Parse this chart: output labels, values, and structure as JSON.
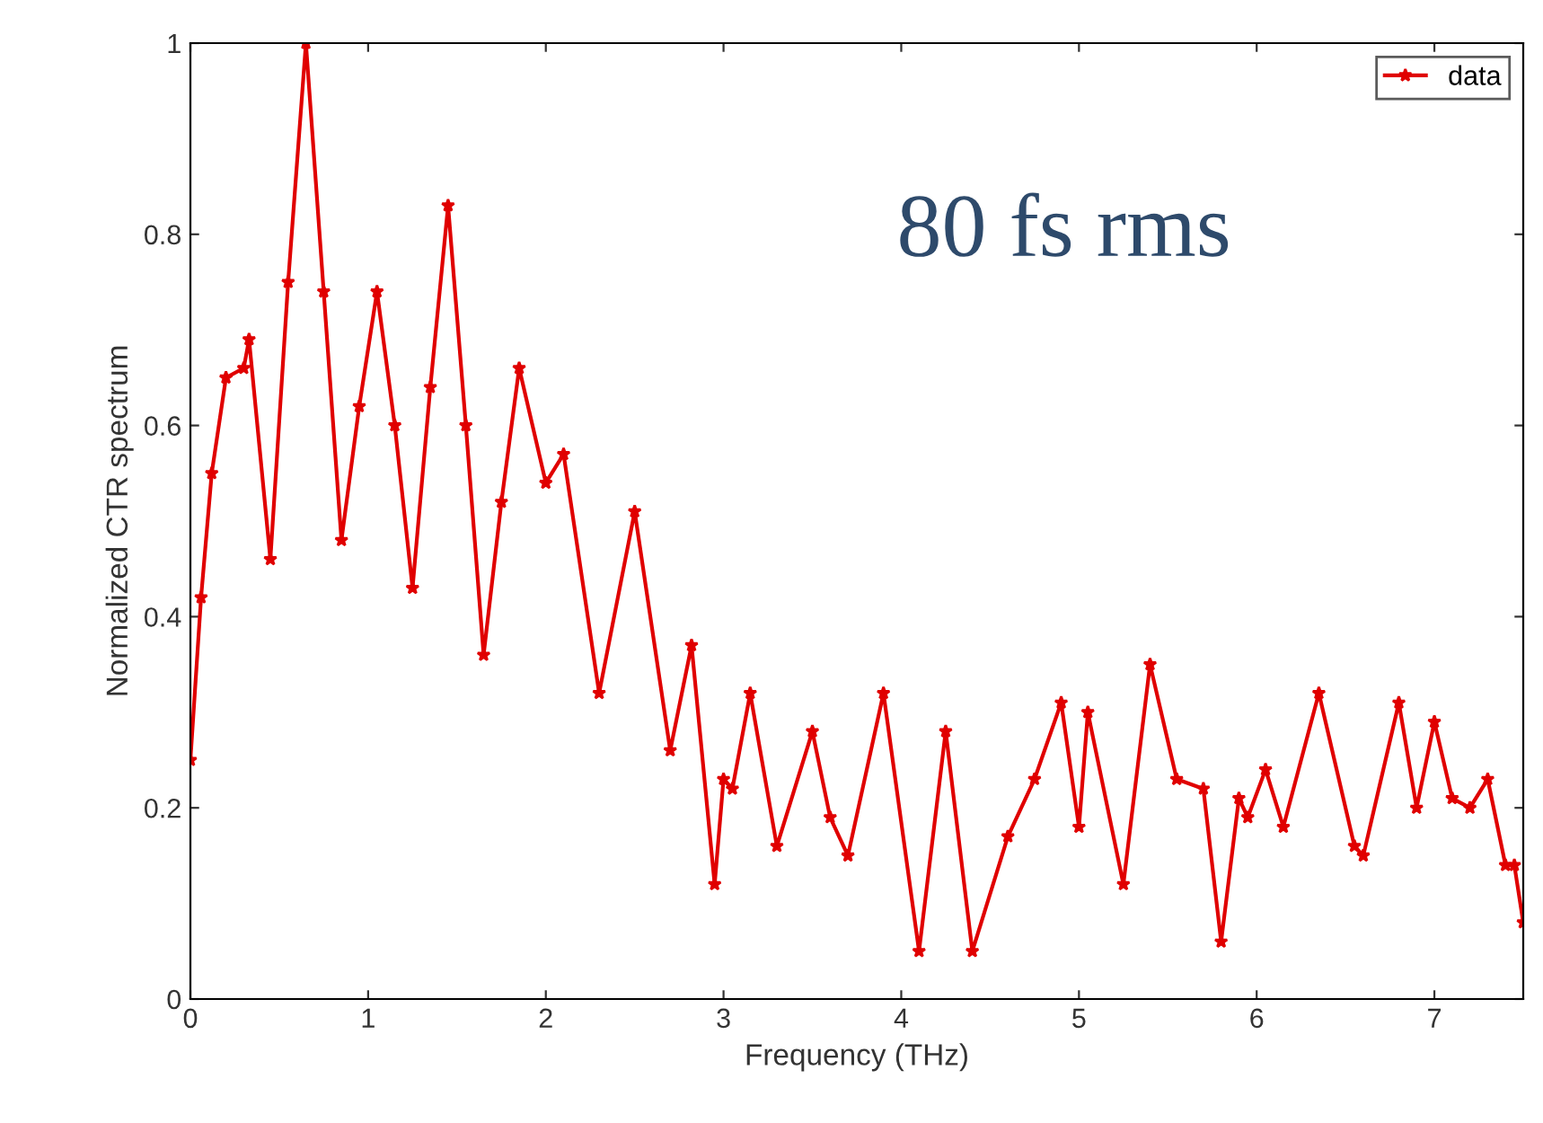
{
  "chart_data": {
    "type": "line",
    "xlabel": "Frequency (THz)",
    "ylabel": "Normalized CTR spectrum",
    "annotations": [
      "80 fs rms"
    ],
    "xlim": [
      0,
      7.5
    ],
    "ylim": [
      0,
      1
    ],
    "xticks": [
      0,
      1,
      2,
      3,
      4,
      5,
      6,
      7
    ],
    "yticks": [
      0,
      0.2,
      0.4,
      0.6,
      0.8,
      1
    ],
    "legend": "top right",
    "grid": false,
    "marker": "star",
    "line_style": "solid",
    "series": [
      {
        "name": "data",
        "color": "#e00000",
        "x": [
          0,
          0.06,
          0.12,
          0.2,
          0.3,
          0.33,
          0.45,
          0.55,
          0.65,
          0.75,
          0.85,
          0.95,
          1.05,
          1.15,
          1.25,
          1.35,
          1.45,
          1.55,
          1.65,
          1.75,
          1.85,
          2.0,
          2.1,
          2.3,
          2.5,
          2.7,
          2.82,
          2.95,
          3.0,
          3.05,
          3.15,
          3.3,
          3.5,
          3.6,
          3.7,
          3.9,
          4.1,
          4.25,
          4.4,
          4.6,
          4.75,
          4.9,
          5.0,
          5.05,
          5.25,
          5.4,
          5.55,
          5.7,
          5.8,
          5.9,
          5.95,
          6.05,
          6.15,
          6.35,
          6.55,
          6.6,
          6.8,
          6.9,
          7.0,
          7.1,
          7.2,
          7.3,
          7.4,
          7.45,
          7.5
        ],
        "values": [
          0.25,
          0.42,
          0.55,
          0.65,
          0.66,
          0.69,
          0.46,
          0.75,
          1.0,
          0.74,
          0.48,
          0.62,
          0.74,
          0.6,
          0.43,
          0.64,
          0.83,
          0.6,
          0.36,
          0.52,
          0.66,
          0.54,
          0.57,
          0.32,
          0.51,
          0.26,
          0.37,
          0.12,
          0.23,
          0.22,
          0.32,
          0.16,
          0.28,
          0.19,
          0.15,
          0.32,
          0.05,
          0.28,
          0.05,
          0.17,
          0.23,
          0.31,
          0.18,
          0.3,
          0.12,
          0.35,
          0.23,
          0.22,
          0.06,
          0.21,
          0.19,
          0.24,
          0.18,
          0.32,
          0.16,
          0.15,
          0.31,
          0.2,
          0.29,
          0.21,
          0.2,
          0.23,
          0.14,
          0.14,
          0.08
        ]
      }
    ]
  }
}
